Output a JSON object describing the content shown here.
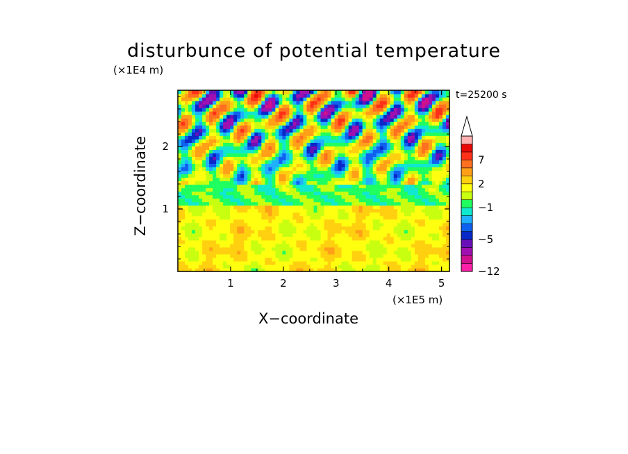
{
  "chart_data": {
    "type": "heatmap",
    "title": "disturbunce of potential temperature",
    "xlabel": "X−coordinate",
    "ylabel": "Z−coordinate",
    "x_unit": "(×1E5 m)",
    "y_unit": "(×1E4 m)",
    "time_label": "t=25200 s",
    "xlim": [
      0,
      5.15
    ],
    "ylim": [
      0,
      2.9
    ],
    "x_ticks": [
      "1",
      "2",
      "3",
      "4",
      "5"
    ],
    "x_tick_values": [
      1,
      2,
      3,
      4,
      5
    ],
    "y_ticks": [
      "1",
      "2"
    ],
    "y_tick_values": [
      1,
      2
    ],
    "colorbar": {
      "levels": [
        -12,
        -10,
        -8,
        -6,
        -5,
        -4,
        -3,
        -2,
        -1,
        0,
        1,
        2,
        3,
        5,
        7,
        9,
        11
      ],
      "labels": [
        "−12",
        "−5",
        "−1",
        "2",
        "7"
      ],
      "label_values": [
        -12,
        -5,
        -1,
        2,
        7
      ],
      "colors": [
        "#ff20a8",
        "#d0108c",
        "#a010b0",
        "#6a10b8",
        "#0828c8",
        "#1060f0",
        "#20b0ff",
        "#10e8d0",
        "#20ff60",
        "#c8ff10",
        "#ffff10",
        "#ffd010",
        "#ffa018",
        "#ff7020",
        "#ff3018",
        "#e80808",
        "#ffb0b0"
      ],
      "extend_max": true
    },
    "field_description": [
      {
        "z_range": [
          0,
          1.1
        ],
        "dominant_values": [
          0,
          3
        ],
        "note": "yellow/orange band with weak positive disturbance"
      },
      {
        "z_range": [
          1.0,
          1.4
        ],
        "dominant_values": [
          -1,
          0
        ],
        "note": "green layer"
      },
      {
        "z_range": [
          1.4,
          2.9
        ],
        "dominant_values": [
          -6,
          9
        ],
        "note": "wave pattern alternating blue and orange/red cells"
      }
    ]
  }
}
